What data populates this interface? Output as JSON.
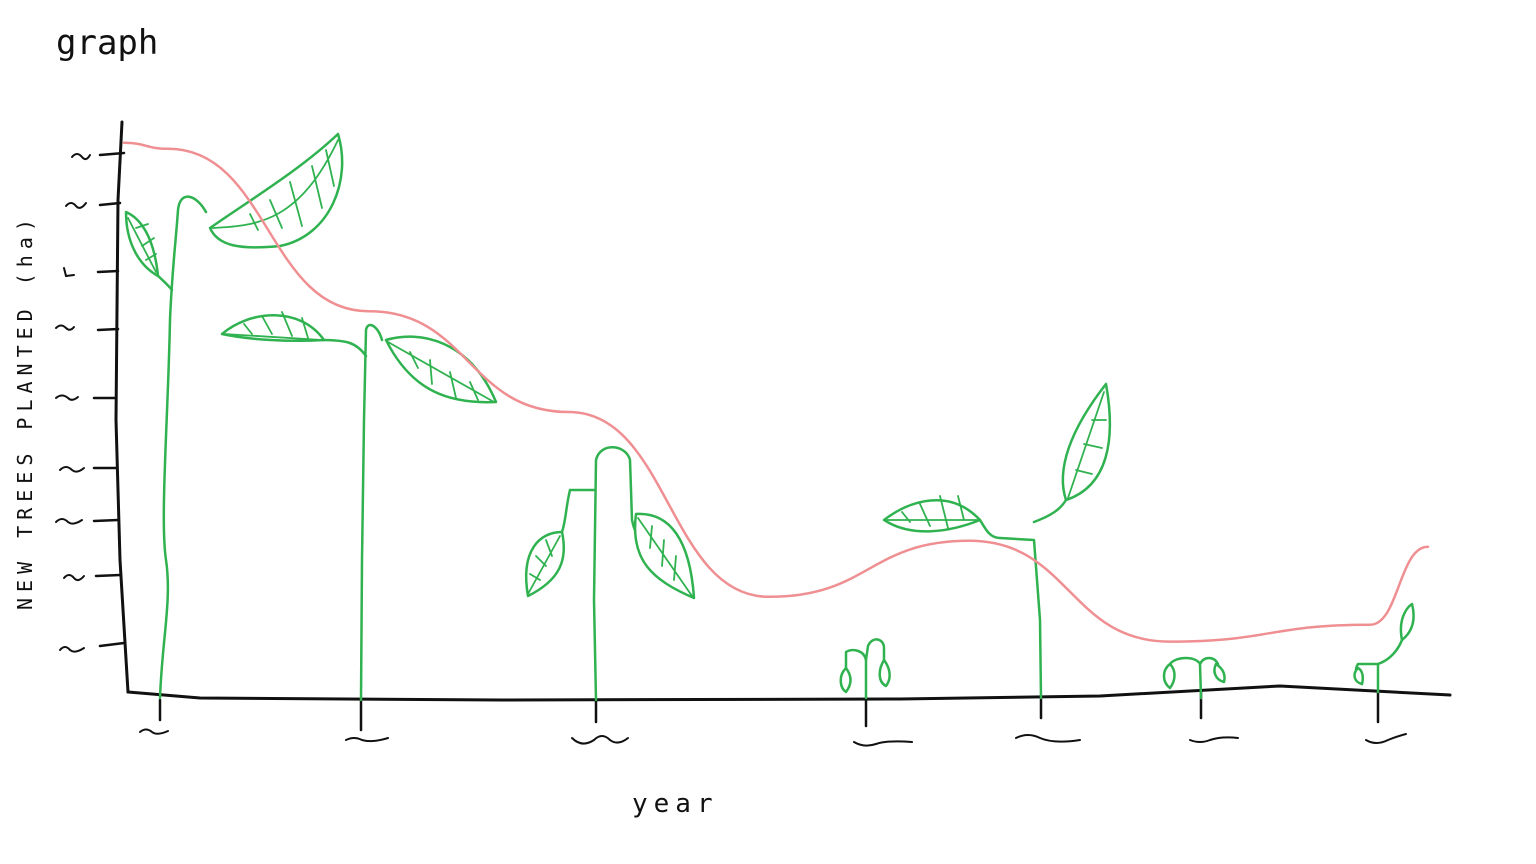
{
  "chart_data": {
    "type": "line",
    "title": "graph",
    "xlabel": "year",
    "ylabel": "NEW TREES PLANTED (ha)",
    "x": [
      1,
      2,
      3,
      4,
      5,
      6,
      7
    ],
    "xlim": [
      0.8,
      7.4
    ],
    "ylim": [
      0,
      10
    ],
    "series": [
      {
        "values": [
          9.7,
          6.8,
          5.0,
          1.7,
          2.7,
          0.9,
          1.2
        ]
      }
    ],
    "tick_labels_legible": false,
    "grid": false,
    "legend": "none",
    "decoration": "seedling-drawings",
    "colors": {
      "line": "#ef8f92",
      "plants": "#2fb24f",
      "axes": "#111111"
    }
  }
}
